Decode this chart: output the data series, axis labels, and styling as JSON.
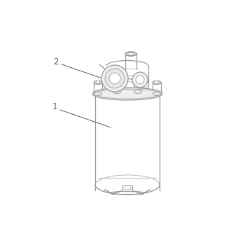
{
  "background_color": "#ffffff",
  "line_color": "#bbbbbb",
  "dark_line": "#999999",
  "med_line": "#aaaaaa",
  "label_color": "#555555",
  "label_1": "1",
  "label_2": "2",
  "figsize": [
    3.5,
    3.5
  ],
  "dpi": 100,
  "xlim": [
    0,
    350
  ],
  "ylim": [
    0,
    350
  ]
}
